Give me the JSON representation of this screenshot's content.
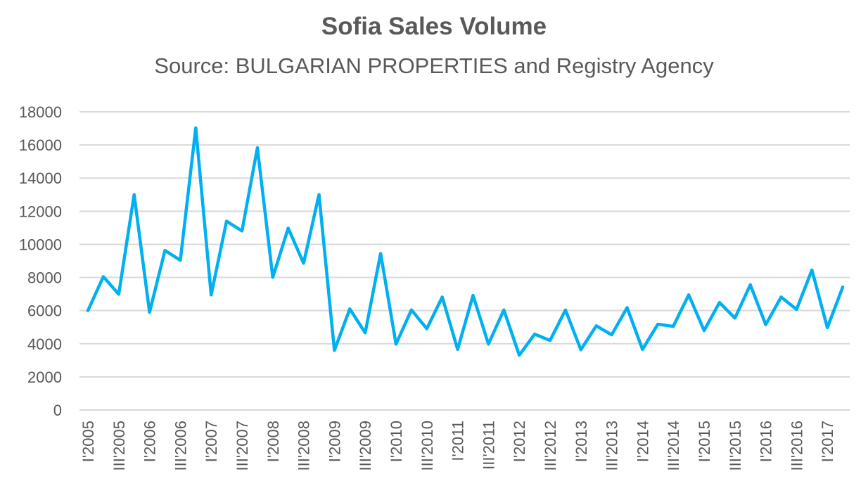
{
  "chart_data": {
    "type": "line",
    "title": "Sofia Sales Volume",
    "subtitle": "Source: BULGARIAN PROPERTIES and Registry Agency",
    "xlabel": "",
    "ylabel": "",
    "ylim": [
      0,
      18000
    ],
    "y_ticks": [
      0,
      2000,
      4000,
      6000,
      8000,
      10000,
      12000,
      14000,
      16000,
      18000
    ],
    "grid": true,
    "line_color": "#00B0F0",
    "categories": [
      "I'2005",
      "",
      "III'2005",
      "",
      "I'2006",
      "",
      "III'2006",
      "",
      "I'2007",
      "",
      "III'2007",
      "",
      "I'2008",
      "",
      "III'2008",
      "",
      "I'2009",
      "",
      "III'2009",
      "",
      "I'2010",
      "",
      "III'2010",
      "",
      "I'2011",
      "",
      "III'2011",
      "",
      "I'2012",
      "",
      "III'2012",
      "",
      "I'2013",
      "",
      "III'2013",
      "",
      "I'2014",
      "",
      "III'2014",
      "",
      "I'2015",
      "",
      "III'2015",
      "",
      "I'2016",
      "",
      "III'2016",
      "",
      "I'2017",
      ""
    ],
    "values": [
      6000,
      8050,
      6990,
      13000,
      5900,
      9630,
      9040,
      17030,
      6950,
      11400,
      10810,
      15830,
      8010,
      10980,
      8860,
      13000,
      3600,
      6100,
      4660,
      9450,
      3980,
      6040,
      4910,
      6820,
      3660,
      6920,
      3980,
      6040,
      3310,
      4580,
      4200,
      6040,
      3640,
      5080,
      4540,
      6180,
      3660,
      5180,
      5050,
      6950,
      4800,
      6490,
      5550,
      7560,
      5150,
      6820,
      6070,
      8450,
      4970,
      7420
    ]
  }
}
